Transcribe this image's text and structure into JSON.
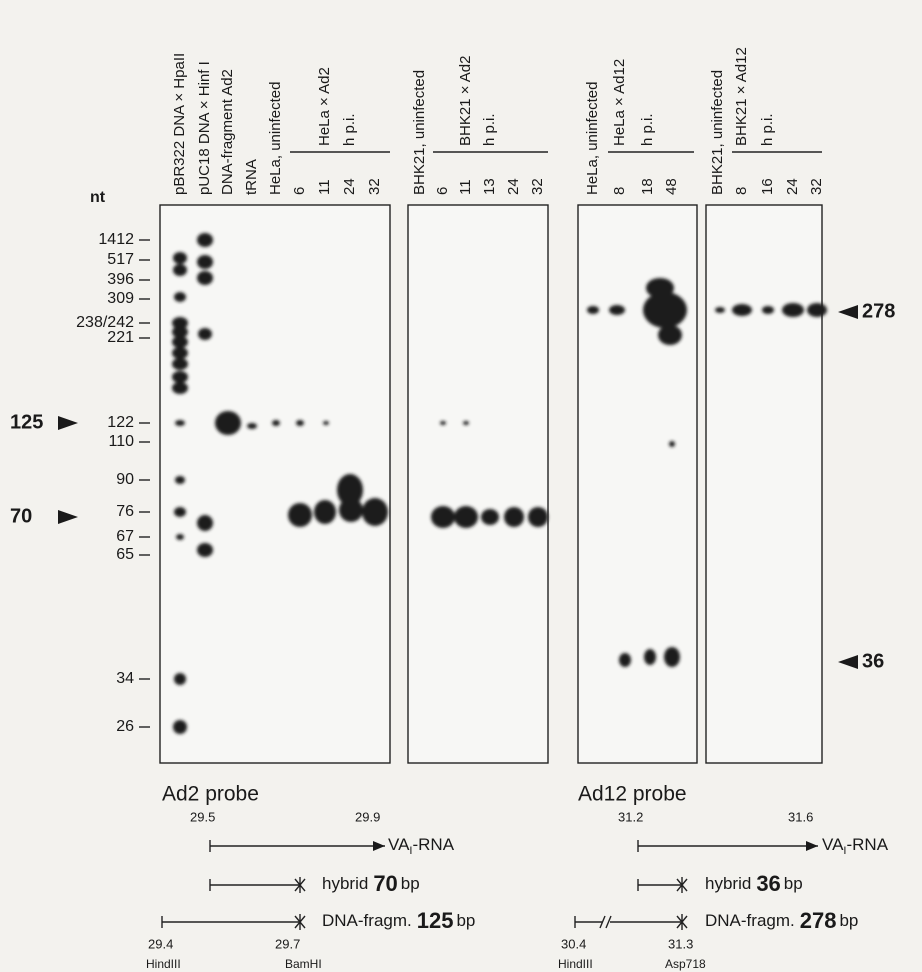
{
  "nt_label": "nt",
  "panels": [
    {
      "lanes": [
        "pBR322 DNA × HpaII",
        "pUC18 DNA × Hinf I",
        "DNA-fragment Ad2",
        "tRNA",
        "HeLa, uninfected",
        "6",
        "11",
        "24",
        "32"
      ],
      "group": {
        "label": "HeLa × Ad2",
        "unit": "h p.i."
      }
    },
    {
      "lanes": [
        "BHK21, uninfected",
        "6",
        "11",
        "13",
        "24",
        "32"
      ],
      "group": {
        "label": "BHK21 × Ad2",
        "unit": "h p.i."
      }
    },
    {
      "lanes": [
        "HeLa, uninfected",
        "8",
        "18",
        "48"
      ],
      "group": {
        "label": "HeLa × Ad12",
        "unit": "h p.i."
      }
    },
    {
      "lanes": [
        "BHK21, uninfected",
        "8",
        "16",
        "24",
        "32"
      ],
      "group": {
        "label": "BHK21 × Ad12",
        "unit": "h p.i."
      }
    }
  ],
  "size_markers": [
    "1412",
    "517",
    "396",
    "309",
    "238/242",
    "221",
    "122",
    "110",
    "90",
    "76",
    "67",
    "65",
    "34",
    "26"
  ],
  "arrows": {
    "left": [
      "125",
      "70"
    ],
    "right": [
      "278",
      "36"
    ]
  },
  "probes": [
    "Ad2 probe",
    "Ad12 probe"
  ],
  "maps": [
    {
      "start": "29.5",
      "end": "29.9",
      "rna": {
        "main": "VA",
        "sub": "I",
        "rest": "-RNA"
      },
      "hybrid": {
        "text": "hybrid",
        "size": "70",
        "unit": "bp"
      },
      "fragment": {
        "text": "DNA-fragm.",
        "size": "125",
        "unit": "bp"
      },
      "left_pos": "29.4",
      "left_site": "HindIII",
      "right_pos": "29.7",
      "right_site": "BamHI"
    },
    {
      "start": "31.2",
      "end": "31.6",
      "rna": {
        "main": "VA",
        "sub": "I",
        "rest": "-RNA"
      },
      "hybrid": {
        "text": "hybrid",
        "size": "36",
        "unit": "bp"
      },
      "fragment": {
        "text": "DNA-fragm.",
        "size": "278",
        "unit": "bp"
      },
      "left_pos": "30.4",
      "left_site": "HindIII",
      "right_pos": "31.3",
      "right_site": "Asp718"
    }
  ]
}
